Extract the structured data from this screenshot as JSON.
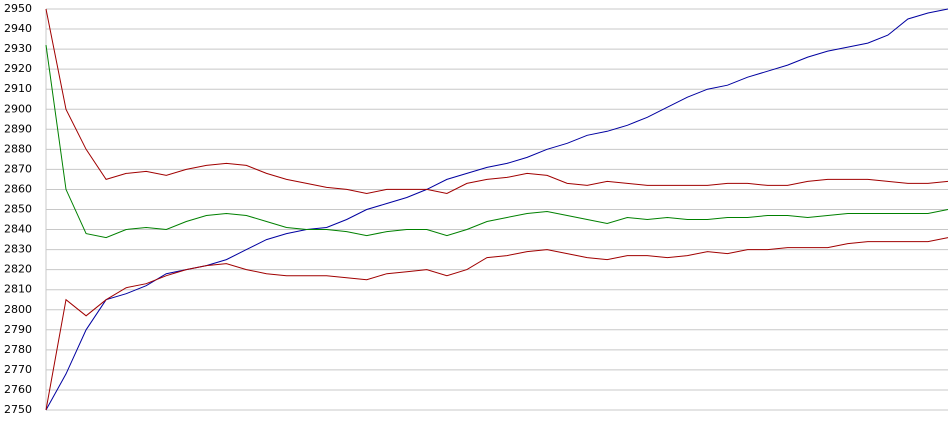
{
  "chart_data": {
    "type": "line",
    "ylim": [
      2750,
      2950
    ],
    "yticks": [
      2750,
      2760,
      2770,
      2780,
      2790,
      2800,
      2810,
      2820,
      2830,
      2840,
      2850,
      2860,
      2870,
      2880,
      2890,
      2900,
      2910,
      2920,
      2930,
      2940,
      2950
    ],
    "grid": true,
    "series": [
      {
        "color": "#0000a0",
        "values": [
          2750,
          2768,
          2790,
          2805,
          2808,
          2812,
          2818,
          2820,
          2822,
          2825,
          2830,
          2835,
          2838,
          2840,
          2841,
          2845,
          2850,
          2853,
          2856,
          2860,
          2865,
          2868,
          2871,
          2873,
          2876,
          2880,
          2883,
          2887,
          2889,
          2892,
          2896,
          2901,
          2906,
          2910,
          2912,
          2916,
          2919,
          2922,
          2926,
          2929,
          2931,
          2933,
          2937,
          2945,
          2948,
          2950
        ]
      },
      {
        "color": "#008000",
        "values": [
          2932,
          2860,
          2838,
          2836,
          2840,
          2841,
          2840,
          2844,
          2847,
          2848,
          2847,
          2844,
          2841,
          2840,
          2840,
          2839,
          2837,
          2839,
          2840,
          2840,
          2837,
          2840,
          2844,
          2846,
          2848,
          2849,
          2847,
          2845,
          2843,
          2846,
          2845,
          2846,
          2845,
          2845,
          2846,
          2846,
          2847,
          2847,
          2846,
          2847,
          2848,
          2848,
          2848,
          2848,
          2848,
          2850
        ]
      },
      {
        "color": "#a00000",
        "values": [
          2950,
          2900,
          2880,
          2865,
          2868,
          2869,
          2867,
          2870,
          2872,
          2873,
          2872,
          2868,
          2865,
          2863,
          2861,
          2860,
          2858,
          2860,
          2860,
          2860,
          2858,
          2863,
          2865,
          2866,
          2868,
          2867,
          2863,
          2862,
          2864,
          2863,
          2862,
          2862,
          2862,
          2862,
          2863,
          2863,
          2862,
          2862,
          2864,
          2865,
          2865,
          2865,
          2864,
          2863,
          2863,
          2864
        ]
      },
      {
        "color": "#a00000",
        "values": [
          2750,
          2805,
          2797,
          2805,
          2811,
          2813,
          2817,
          2820,
          2822,
          2823,
          2820,
          2818,
          2817,
          2817,
          2817,
          2816,
          2815,
          2818,
          2819,
          2820,
          2817,
          2820,
          2826,
          2827,
          2829,
          2830,
          2828,
          2826,
          2825,
          2827,
          2827,
          2826,
          2827,
          2829,
          2828,
          2830,
          2830,
          2831,
          2831,
          2831,
          2833,
          2834,
          2834,
          2834,
          2834,
          2836
        ]
      }
    ]
  }
}
